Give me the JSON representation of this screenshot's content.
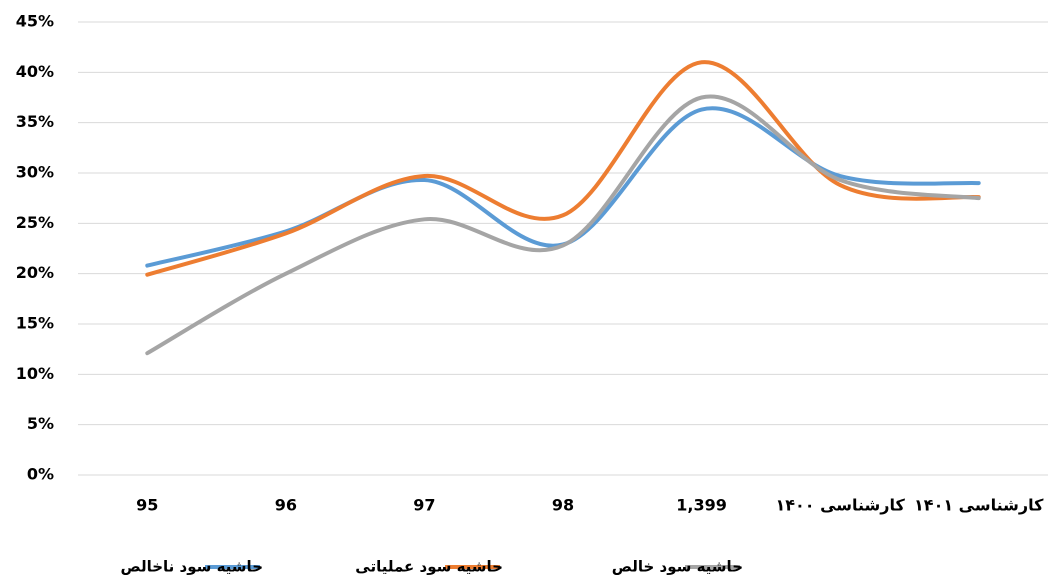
{
  "chart_data": {
    "type": "line",
    "categories": [
      "95",
      "96",
      "97",
      "98",
      "1,399",
      "کارشناسی ۱۴۰۰",
      "کارشناسی ۱۴۰۱"
    ],
    "series": [
      {
        "name": "حاشیه سود ناخالص",
        "color": "#5b9bd5",
        "values": [
          20.8,
          24.2,
          29.3,
          22.9,
          36.3,
          29.7,
          29.0
        ]
      },
      {
        "name": "حاشیه سود عملیاتی",
        "color": "#ed7d31",
        "values": [
          19.9,
          24.0,
          29.7,
          25.8,
          41.0,
          28.8,
          27.6
        ]
      },
      {
        "name": "حاشیه سود خالص",
        "color": "#a5a5a5",
        "values": [
          12.1,
          20.0,
          25.4,
          22.8,
          37.5,
          29.3,
          27.5
        ]
      }
    ],
    "ylim": [
      0,
      45
    ],
    "yticks": [
      {
        "value": 0,
        "label": "0%"
      },
      {
        "value": 5,
        "label": "5%"
      },
      {
        "value": 10,
        "label": "10%"
      },
      {
        "value": 15,
        "label": "15%"
      },
      {
        "value": 20,
        "label": "20%"
      },
      {
        "value": 25,
        "label": "25%"
      },
      {
        "value": 30,
        "label": "30%"
      },
      {
        "value": 35,
        "label": "35%"
      },
      {
        "value": 40,
        "label": "40%"
      },
      {
        "value": 45,
        "label": "45%"
      }
    ],
    "grid": true,
    "legend": "bottom",
    "smooth": true
  }
}
